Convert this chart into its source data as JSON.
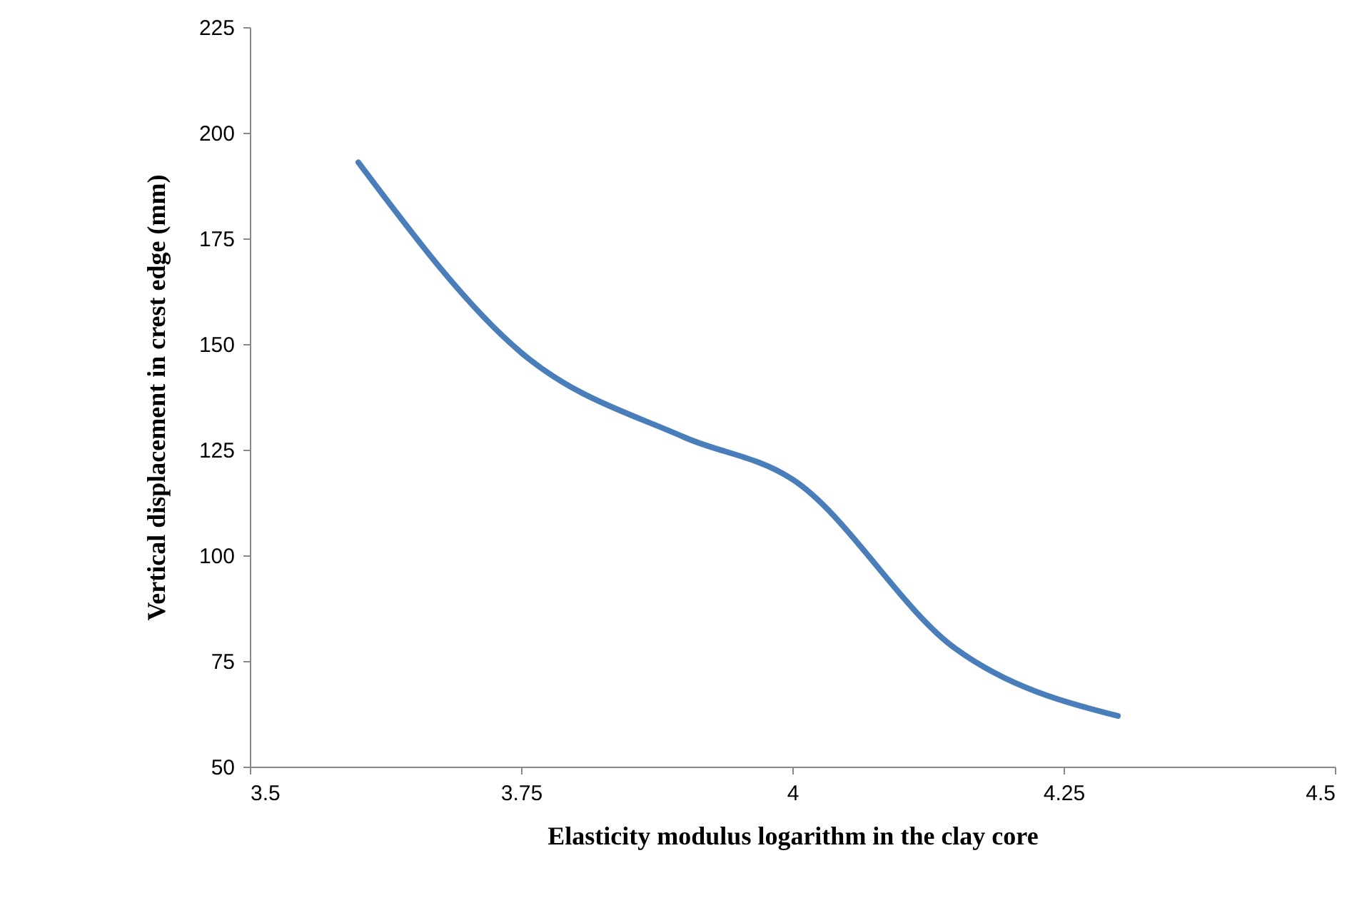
{
  "chart_data": {
    "type": "line",
    "xlabel": "Elasticity modulus logarithm in the clay core",
    "ylabel": "Vertical displacement in crest edge (mm)",
    "x": [
      3.6,
      3.75,
      3.9,
      4.0,
      4.15,
      4.3
    ],
    "series": [
      {
        "color": "#4a7ebb",
        "values": [
          193,
          148,
          128,
          118,
          78,
          62
        ]
      }
    ],
    "xlim": [
      3.5,
      4.5
    ],
    "xticks": [
      3.5,
      3.75,
      4,
      4.25,
      4.5
    ],
    "ylim": [
      50,
      225
    ],
    "yticks": [
      50,
      75,
      100,
      125,
      150,
      175,
      200,
      225
    ],
    "grid": false,
    "marker": "none",
    "line_style": "solid"
  }
}
